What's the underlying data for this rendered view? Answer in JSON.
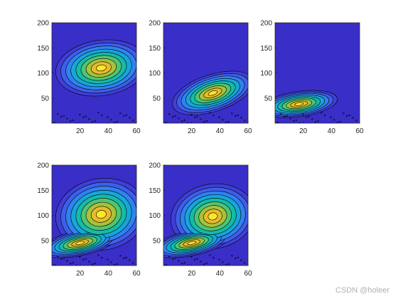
{
  "chart_data": [
    {
      "type": "contour",
      "grid": false,
      "xlim": [
        0,
        60
      ],
      "ylim": [
        0,
        200
      ],
      "xticks": [
        20,
        40,
        60
      ],
      "yticks": [
        50,
        100,
        150,
        200
      ],
      "peaks": [
        {
          "x": 35,
          "y": 110
        }
      ],
      "colors": {
        "background": "#3a2ec8"
      }
    },
    {
      "type": "contour",
      "grid": false,
      "xlim": [
        0,
        60
      ],
      "ylim": [
        0,
        200
      ],
      "xticks": [
        20,
        40,
        60
      ],
      "yticks": [
        50,
        100,
        150,
        200
      ],
      "peaks": [
        {
          "x": 35,
          "y": 58
        }
      ],
      "colors": {
        "background": "#3a2ec8"
      }
    },
    {
      "type": "contour",
      "grid": false,
      "xlim": [
        0,
        60
      ],
      "ylim": [
        0,
        200
      ],
      "xticks": [
        20,
        40,
        60
      ],
      "yticks": [
        50,
        100,
        150,
        200
      ],
      "peaks": [
        {
          "x": 17,
          "y": 38
        }
      ],
      "colors": {
        "background": "#3a2ec8"
      }
    },
    {
      "type": "contour",
      "grid": false,
      "xlim": [
        0,
        60
      ],
      "ylim": [
        0,
        200
      ],
      "xticks": [
        20,
        40,
        60
      ],
      "yticks": [
        50,
        100,
        150,
        200
      ],
      "peaks": [
        {
          "x": 35,
          "y": 105
        },
        {
          "x": 20,
          "y": 45
        }
      ],
      "colors": {
        "background": "#3a2ec8"
      }
    },
    {
      "type": "contour",
      "grid": false,
      "xlim": [
        0,
        60
      ],
      "ylim": [
        0,
        200
      ],
      "xticks": [
        20,
        40,
        60
      ],
      "yticks": [
        50,
        100,
        150,
        200
      ],
      "peaks": [
        {
          "x": 35,
          "y": 100
        },
        {
          "x": 20,
          "y": 45
        }
      ],
      "colors": {
        "background": "#3a2ec8"
      }
    }
  ],
  "watermark": "CSDN @holeer",
  "colors": {
    "levels": [
      "#3e3fd6",
      "#3d5fec",
      "#2f83f0",
      "#17a6d8",
      "#14bba8",
      "#52c472",
      "#a8c23a",
      "#e6bb2e",
      "#fce62a"
    ]
  }
}
